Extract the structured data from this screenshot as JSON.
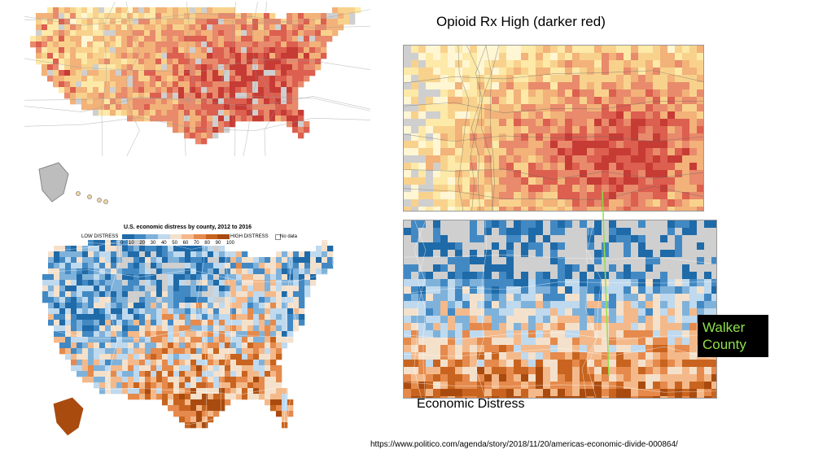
{
  "title": "Opioid Rx High (darker red)",
  "economic_distress_label": "Economic Distress",
  "walker_county_label": "Walker County",
  "source_url": "https://www.politico.com/agenda/story/2018/11/20/americas-economic-divide-000864/",
  "legend": {
    "title": "U.S. economic distress by county, 2012 to 2016",
    "low_label": "LOW DISTRESS",
    "high_label": "HIGH DISTRESS",
    "no_data_label": "No data",
    "ticks": [
      "0",
      "10",
      "20",
      "30",
      "40",
      "50",
      "60",
      "70",
      "80",
      "90",
      "100"
    ]
  },
  "colors": {
    "opioid_scale": [
      "#fff6d4",
      "#fde9a8",
      "#f8d28c",
      "#f2b279",
      "#e88a6b",
      "#dc5f4f",
      "#c73b35"
    ],
    "opioid_no_data": "#cfcfcf",
    "distress_scale": [
      "#1f6aa8",
      "#4289c4",
      "#7fb2da",
      "#bfd9ee",
      "#f4e1cc",
      "#f4b98a",
      "#e58a4c",
      "#c8641f",
      "#a94b0f"
    ],
    "walker_label_text": "#8fe04a",
    "walker_line": "#8fe04a"
  }
}
